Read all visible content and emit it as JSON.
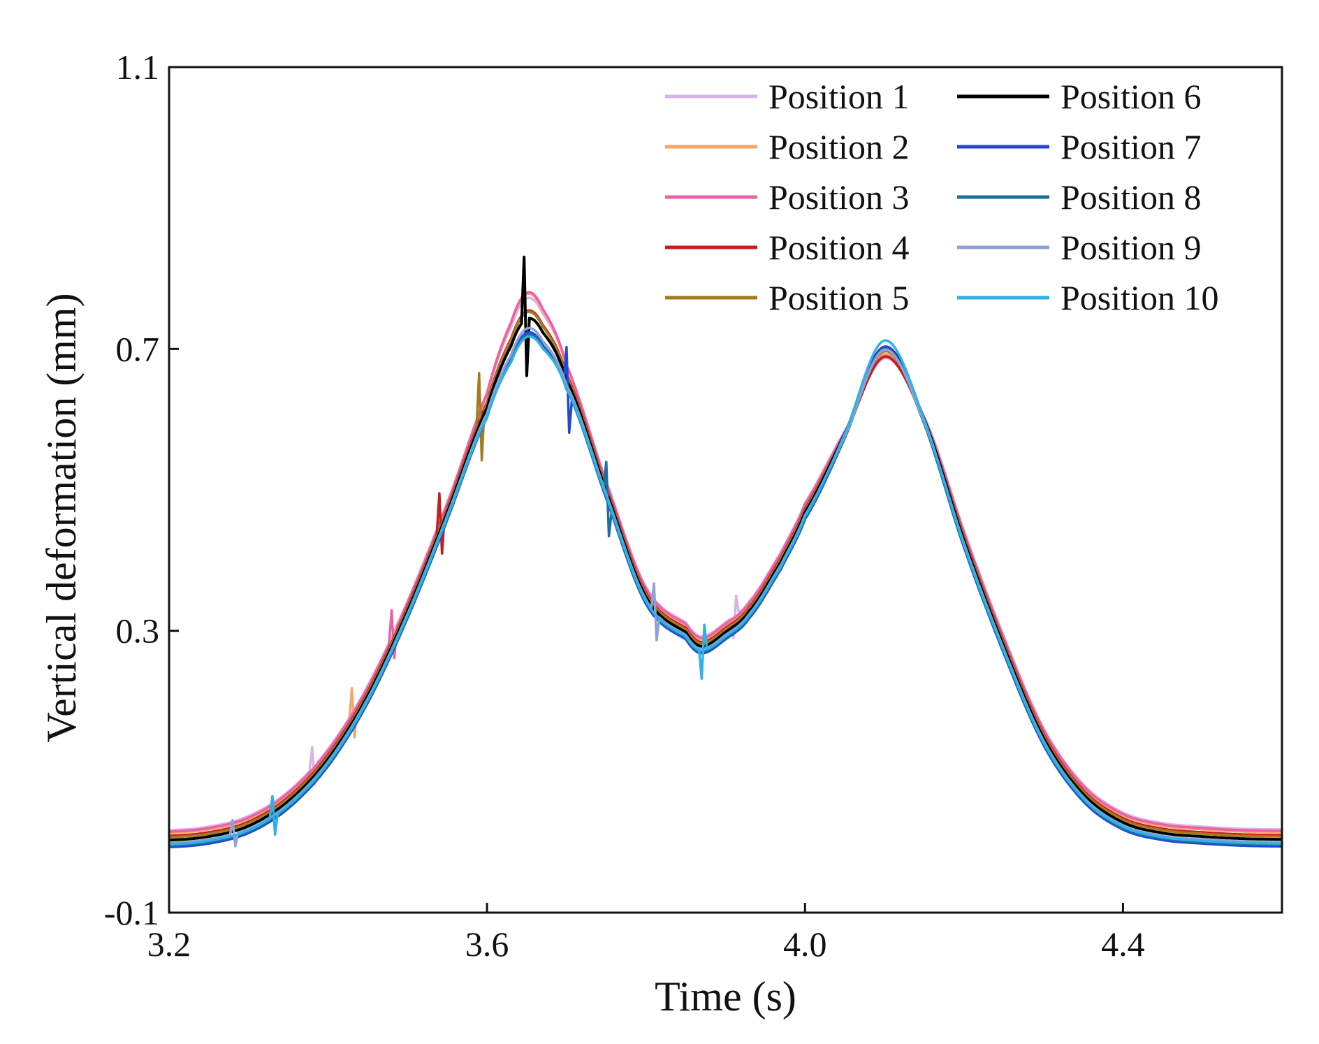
{
  "chart_data": {
    "type": "line",
    "title": "",
    "xlabel": "Time (s)",
    "ylabel": "Vertical deformation (mm)",
    "xlim": [
      3.2,
      4.6
    ],
    "ylim": [
      -0.1,
      1.1
    ],
    "xticks": [
      3.2,
      3.6,
      4.0,
      4.4
    ],
    "xtick_labels": [
      "3.2",
      "3.6",
      "4.0",
      "4.4"
    ],
    "yticks": [
      -0.1,
      0.3,
      0.7,
      1.1
    ],
    "ytick_labels": [
      "-0.1",
      "0.3",
      "0.7",
      "1.1"
    ],
    "grid": false,
    "legend_position": "top-right",
    "base_curve": {
      "x": [
        3.2,
        3.25,
        3.3,
        3.35,
        3.4,
        3.45,
        3.5,
        3.55,
        3.6,
        3.63,
        3.65,
        3.67,
        3.7,
        3.75,
        3.8,
        3.85,
        3.87,
        3.9,
        3.93,
        3.97,
        4.0,
        4.05,
        4.1,
        4.15,
        4.2,
        4.25,
        4.3,
        4.35,
        4.4,
        4.45,
        4.5,
        4.55,
        4.6
      ],
      "y": [
        0.005,
        0.01,
        0.025,
        0.06,
        0.12,
        0.21,
        0.33,
        0.47,
        0.62,
        0.71,
        0.75,
        0.73,
        0.66,
        0.5,
        0.35,
        0.3,
        0.28,
        0.3,
        0.33,
        0.4,
        0.47,
        0.58,
        0.7,
        0.6,
        0.43,
        0.28,
        0.15,
        0.07,
        0.03,
        0.015,
        0.01,
        0.007,
        0.006
      ]
    },
    "series": [
      {
        "name": "Position 1",
        "color": "#d9b3e6",
        "offset": 0.012,
        "peak_shift": 0.01,
        "peak2_shift": -0.025,
        "spike_x": [
          3.38,
          3.91
        ],
        "spike_amp": [
          0.03,
          -0.03
        ]
      },
      {
        "name": "Position 2",
        "color": "#f4a66c",
        "offset": 0.008,
        "peak_shift": 0.02,
        "peak2_shift": -0.015,
        "spike_x": [
          3.43
        ],
        "spike_amp": [
          0.04
        ]
      },
      {
        "name": "Position 3",
        "color": "#ee5fa7",
        "offset": 0.01,
        "peak_shift": 0.02,
        "peak2_shift": -0.02,
        "spike_x": [
          3.48
        ],
        "spike_amp": [
          0.04
        ]
      },
      {
        "name": "Position 4",
        "color": "#c41e1e",
        "offset": 0.004,
        "peak_shift": 0.0,
        "peak2_shift": -0.015,
        "spike_x": [
          3.54
        ],
        "spike_amp": [
          0.05
        ]
      },
      {
        "name": "Position 5",
        "color": "#a67a1e",
        "offset": 0.002,
        "peak_shift": 0.0,
        "peak2_shift": -0.005,
        "spike_x": [
          3.59
        ],
        "spike_amp": [
          0.07
        ]
      },
      {
        "name": "Position 6",
        "color": "#000000",
        "offset": -0.002,
        "peak_shift": -0.005,
        "peak2_shift": 0.005,
        "spike_x": [
          3.648
        ],
        "spike_amp": [
          0.09
        ]
      },
      {
        "name": "Position 7",
        "color": "#2346d8",
        "offset": -0.012,
        "peak_shift": -0.015,
        "peak2_shift": 0.015,
        "spike_x": [
          3.7
        ],
        "spike_amp": [
          0.06
        ]
      },
      {
        "name": "Position 8",
        "color": "#1a6fa0",
        "offset": -0.01,
        "peak_shift": -0.02,
        "peak2_shift": 0.01,
        "spike_x": [
          3.75
        ],
        "spike_amp": [
          0.05
        ]
      },
      {
        "name": "Position 9",
        "color": "#8fa2d6",
        "offset": -0.006,
        "peak_shift": -0.015,
        "peak2_shift": 0.005,
        "spike_x": [
          3.81,
          3.28
        ],
        "spike_amp": [
          0.04,
          0.02
        ]
      },
      {
        "name": "Position 10",
        "color": "#2fb1e4",
        "offset": -0.008,
        "peak_shift": -0.025,
        "peak2_shift": 0.02,
        "spike_x": [
          3.87,
          3.33
        ],
        "spike_amp": [
          -0.04,
          0.03
        ]
      }
    ]
  }
}
